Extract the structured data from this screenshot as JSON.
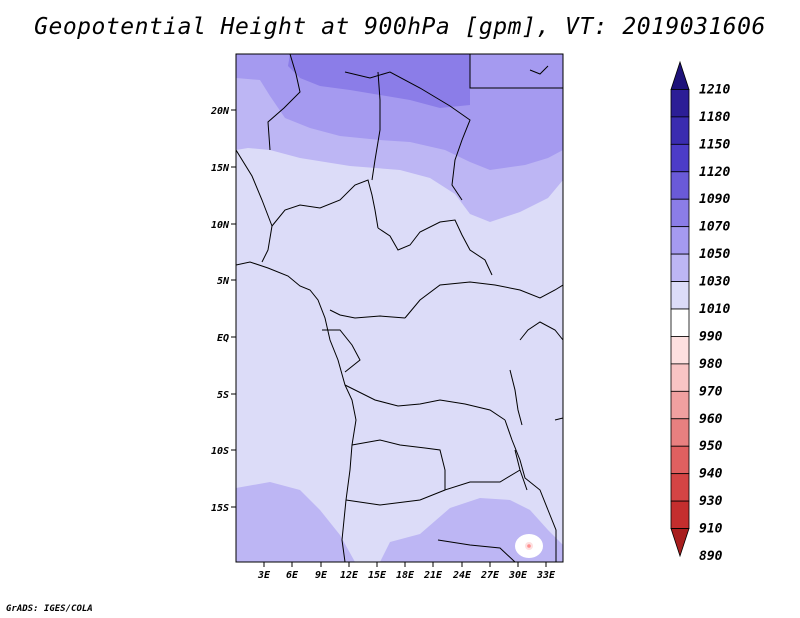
{
  "title": "Geopotential Height at 900hPa [gpm], VT: 2019031606",
  "credit": "GrADS: IGES/COLA",
  "map": {
    "region": "Central Africa",
    "lat_labels": [
      "20N",
      "15N",
      "10N",
      "5N",
      "EQ",
      "5S",
      "10S",
      "15S"
    ],
    "lon_labels": [
      "3E",
      "6E",
      "9E",
      "12E",
      "15E",
      "18E",
      "21E",
      "24E",
      "27E",
      "30E",
      "33E"
    ],
    "colors": {
      "c1010": "#dcdcf8",
      "c1030": "#bdb6f4",
      "c1050": "#a59af0",
      "c1070": "#8b7de8",
      "low_center": "#ff8f8f"
    }
  },
  "colorbar": {
    "labels": [
      "1210",
      "1180",
      "1150",
      "1120",
      "1090",
      "1070",
      "1050",
      "1030",
      "1010",
      "990",
      "980",
      "970",
      "960",
      "950",
      "940",
      "930",
      "910",
      "890"
    ],
    "colors": [
      "#1e127a",
      "#2c1e96",
      "#3a2cb0",
      "#4c3cc8",
      "#6a5ad8",
      "#8b7de8",
      "#a59af0",
      "#bdb6f4",
      "#dcdcf8",
      "#ffffff",
      "#fde0e0",
      "#f8c4c4",
      "#f0a0a0",
      "#e88080",
      "#e06060",
      "#d44444",
      "#c42e2e",
      "#a81e1e"
    ]
  }
}
